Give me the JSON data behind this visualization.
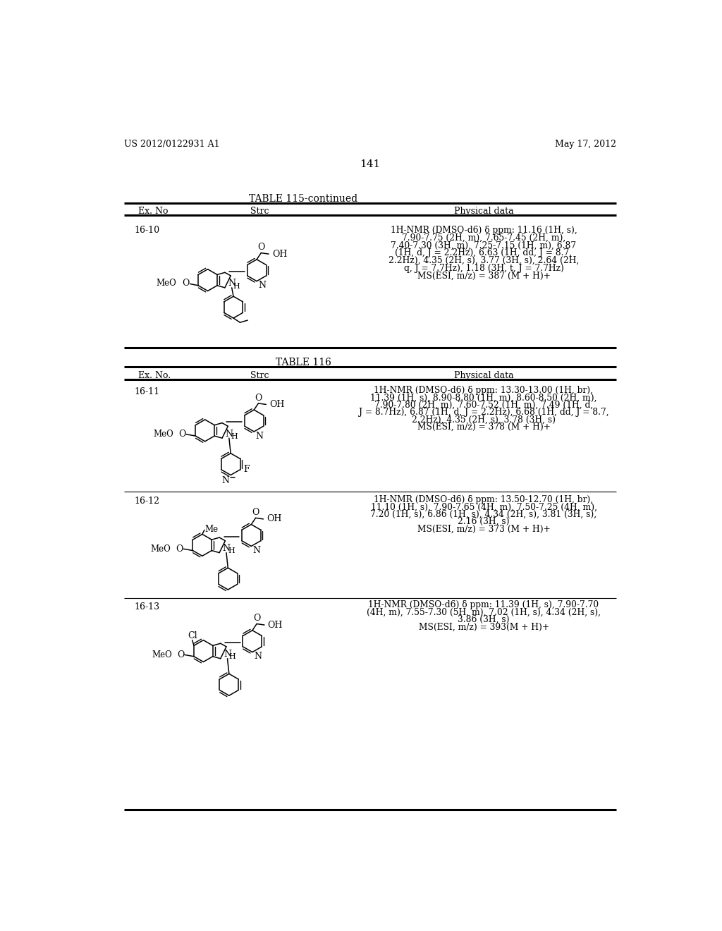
{
  "background_color": "#ffffff",
  "page_number": "141",
  "header_left": "US 2012/0122931 A1",
  "header_right": "May 17, 2012",
  "table1_title": "TABLE 115-continued",
  "table2_title": "TABLE 116",
  "rows": [
    {
      "ex_no": "16-10",
      "physical_data": "1H-NMR (DMSO-d6) δ ppm: 11.16 (1H, s),\n7.90-7.75 (2H, m), 7.65-7.45 (2H, m),\n7.40-7.30 (3H, m), 7.25-7.15 (1H, m), 6.87\n(1H, d, J = 2.2Hz), 6.63 (1H, dd, J = 8.7,\n2.2Hz), 4.35 (2H, s), 3.77 (3H, s), 2.64 (2H,\nq, J = 7.7Hz), 1.18 (3H, t, J = 7.7Hz)\nMS(ESI, m/z) = 387 (M + H)+"
    },
    {
      "ex_no": "16-11",
      "physical_data": "1H-NMR (DMSO-d6) δ ppm: 13.30-13.00 (1H, br),\n11.39 (1H, s), 8.90-8.80 (1H, m), 8.60-8.50 (2H, m),\n7.90-7.80 (2H, m), 7.60-7.52 (1H, m), 7.49 (1H, d,\nJ = 8.7Hz), 6.87 (1H, d, J = 2.2Hz), 6.68 (1H, dd, J = 8.7,\n2.2Hz), 4.35 (2H, s), 3.78 (3H, s)\nMS(ESI, m/z) = 378 (M + H)+"
    },
    {
      "ex_no": "16-12",
      "physical_data": "1H-NMR (DMSO-d6) δ ppm: 13.50-12.70 (1H, br),\n11.10 (1H, s), 7.90-7.65 (4H, m), 7.50-7.25 (4H, m),\n7.20 (1H, s), 6.86 (1H, s), 4.34 (2H, s), 3.81 (3H, s),\n2.16 (3H, s)\nMS(ESI, m/z) = 373 (M + H)+"
    },
    {
      "ex_no": "16-13",
      "physical_data": "1H-NMR (DMSO-d6) δ ppm: 11.39 (1H, s), 7.90-7.70\n(4H, m), 7.55-7.30 (5H, m), 7.02 (1H, s), 4.34 (2H, s),\n3.86 (3H, s)\nMS(ESI, m/z) = 393(M + H)+"
    }
  ]
}
